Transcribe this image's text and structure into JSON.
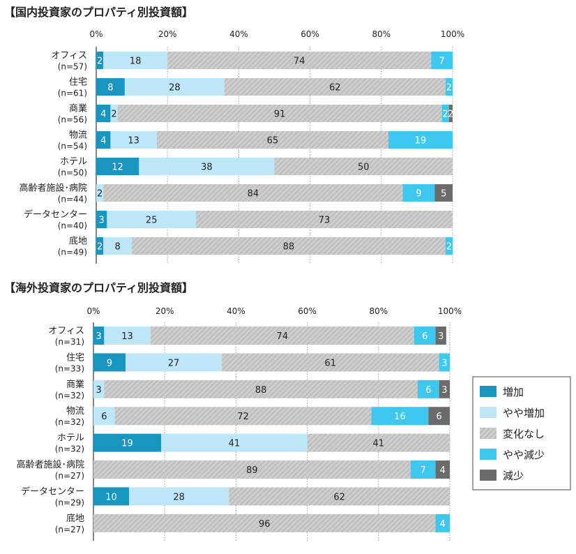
{
  "colors": {
    "increase": "#1996bf",
    "slight_increase": "#bde6f9",
    "no_change": "#c8c8c8",
    "slight_decrease": "#3ec8f0",
    "decrease": "#6b6b6b"
  },
  "legend": {
    "items": [
      {
        "key": "increase",
        "label": "増加"
      },
      {
        "key": "slight_increase",
        "label": "やや増加"
      },
      {
        "key": "no_change",
        "label": "変化なし"
      },
      {
        "key": "slight_decrease",
        "label": "やや減少"
      },
      {
        "key": "decrease",
        "label": "減少"
      }
    ]
  },
  "chart_data": [
    {
      "type": "bar",
      "orientation": "horizontal",
      "stacked": "percent",
      "title": "【国内投資家のプロパティ別投資額】",
      "xlim": [
        0,
        100
      ],
      "ticks": [
        "0%",
        "20%",
        "40%",
        "60%",
        "80%",
        "100%"
      ],
      "categories": [
        {
          "label": "オフィス",
          "n": "(n=57)"
        },
        {
          "label": "住宅",
          "n": "(n=61)"
        },
        {
          "label": "商業",
          "n": "(n=56)"
        },
        {
          "label": "物流",
          "n": "(n=54)"
        },
        {
          "label": "ホテル",
          "n": "(n=50)"
        },
        {
          "label": "高齢者施設･病院",
          "n": "(n=44)"
        },
        {
          "label": "データセンター",
          "n": "(n=40)"
        },
        {
          "label": "底地",
          "n": "(n=49)"
        }
      ],
      "series": [
        {
          "name": "増加",
          "key": "increase",
          "values": [
            2,
            8,
            4,
            4,
            12,
            0,
            3,
            2
          ]
        },
        {
          "name": "やや増加",
          "key": "slight_increase",
          "values": [
            18,
            28,
            2,
            13,
            38,
            2,
            25,
            8
          ]
        },
        {
          "name": "変化なし",
          "key": "no_change",
          "values": [
            74,
            62,
            91,
            65,
            50,
            84,
            73,
            88
          ]
        },
        {
          "name": "やや減少",
          "key": "slight_decrease",
          "values": [
            7,
            2,
            2,
            19,
            0,
            9,
            0,
            2
          ]
        },
        {
          "name": "減少",
          "key": "decrease",
          "values": [
            0,
            0,
            2,
            0,
            0,
            5,
            0,
            0
          ]
        }
      ]
    },
    {
      "type": "bar",
      "orientation": "horizontal",
      "stacked": "percent",
      "title": "【海外投資家のプロパティ別投資額】",
      "xlim": [
        0,
        100
      ],
      "ticks": [
        "0%",
        "20%",
        "40%",
        "60%",
        "80%",
        "100%"
      ],
      "categories": [
        {
          "label": "オフィス",
          "n": "(n=31)"
        },
        {
          "label": "住宅",
          "n": "(n=33)"
        },
        {
          "label": "商業",
          "n": "(n=32)"
        },
        {
          "label": "物流",
          "n": "(n=32)"
        },
        {
          "label": "ホテル",
          "n": "(n=32)"
        },
        {
          "label": "高齢者施設･病院",
          "n": "(n=27)"
        },
        {
          "label": "データセンター",
          "n": "(n=29)"
        },
        {
          "label": "底地",
          "n": "(n=27)"
        }
      ],
      "series": [
        {
          "name": "増加",
          "key": "increase",
          "values": [
            3,
            9,
            0,
            0,
            19,
            0,
            10,
            0
          ]
        },
        {
          "name": "やや増加",
          "key": "slight_increase",
          "values": [
            13,
            27,
            3,
            6,
            41,
            0,
            28,
            0
          ]
        },
        {
          "name": "変化なし",
          "key": "no_change",
          "values": [
            74,
            61,
            88,
            72,
            41,
            89,
            62,
            96
          ]
        },
        {
          "name": "やや減少",
          "key": "slight_decrease",
          "values": [
            6,
            3,
            6,
            16,
            0,
            7,
            0,
            4
          ]
        },
        {
          "name": "減少",
          "key": "decrease",
          "values": [
            3,
            0,
            3,
            6,
            0,
            4,
            0,
            0
          ]
        }
      ]
    }
  ]
}
